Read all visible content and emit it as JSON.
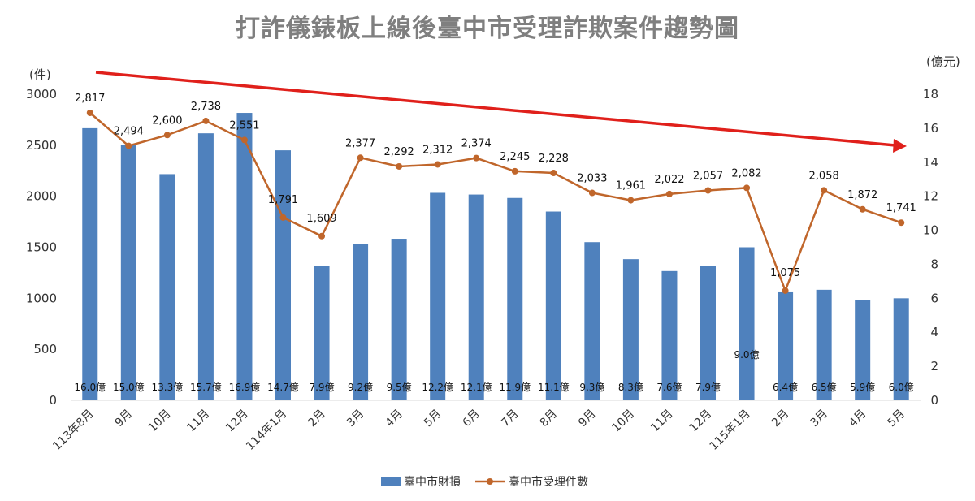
{
  "title": "打詐儀錶板上線後臺中市受理詐欺案件趨勢圖",
  "chart_data": {
    "type": "bar+line",
    "title": "打詐儀錶板上線後臺中市受理詐欺案件趨勢圖",
    "categories": [
      "113年8月",
      "9月",
      "10月",
      "11月",
      "12月",
      "114年1月",
      "2月",
      "3月",
      "4月",
      "5月",
      "6月",
      "7月",
      "8月",
      "9月",
      "10月",
      "11月",
      "12月",
      "115年1月",
      "2月",
      "3月",
      "4月",
      "5月"
    ],
    "series": [
      {
        "name": "臺中市財損",
        "type": "bar",
        "axis": "right",
        "color": "#4f81bd",
        "values": [
          16.0,
          15.0,
          13.3,
          15.7,
          16.9,
          14.7,
          7.9,
          9.2,
          9.5,
          12.2,
          12.1,
          11.9,
          11.1,
          9.3,
          8.3,
          7.6,
          7.9,
          9.0,
          6.4,
          6.5,
          5.9,
          6.0
        ],
        "labels": [
          "16.0億",
          "15.0億",
          "13.3億",
          "15.7億",
          "16.9億",
          "14.7億",
          "7.9億",
          "9.2億",
          "9.5億",
          "12.2億",
          "12.1億",
          "11.9億",
          "11.1億",
          "9.3億",
          "8.3億",
          "7.6億",
          "7.9億",
          "9.0億",
          "6.4億",
          "6.5億",
          "5.9億",
          "6.0億"
        ]
      },
      {
        "name": "臺中市受理件數",
        "type": "line",
        "axis": "left",
        "color": "#c0662b",
        "values": [
          2817,
          2494,
          2600,
          2738,
          2551,
          1791,
          1609,
          2377,
          2292,
          2312,
          2374,
          2245,
          2228,
          2033,
          1961,
          2022,
          2057,
          2082,
          1075,
          2058,
          1872,
          1741
        ],
        "labels": [
          "2,817",
          "2,494",
          "2,600",
          "2,738",
          "2,551",
          "1,791",
          "1,609",
          "2,377",
          "2,292",
          "2,312",
          "2,374",
          "2,245",
          "2,228",
          "2,033",
          "1,961",
          "2,022",
          "2,057",
          "2,082",
          "1,075",
          "2,058",
          "1,872",
          "1,741"
        ]
      }
    ],
    "y_left": {
      "unit_label": "(件)",
      "min": 0,
      "max": 3000,
      "ticks": [
        "0",
        "500",
        "1000",
        "1500",
        "2000",
        "2500",
        "3000"
      ]
    },
    "y_right": {
      "unit_label": "(億元)",
      "min": 0,
      "max": 18,
      "ticks": [
        "0",
        "2",
        "4",
        "6",
        "8",
        "10",
        "12",
        "14",
        "16",
        "18"
      ]
    },
    "trend_arrow": {
      "color": "#e0201b",
      "direction": "down"
    },
    "grid": false,
    "legend_position": "bottom"
  }
}
